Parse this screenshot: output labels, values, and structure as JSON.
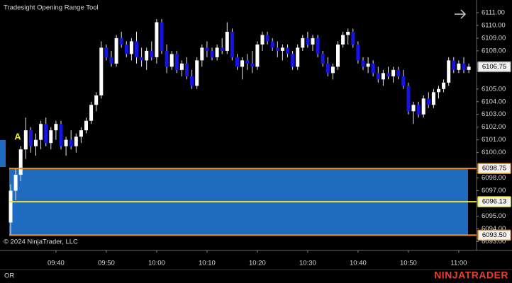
{
  "chart_data": {
    "type": "candlestick",
    "title": "Tradesight Opening Range Tool",
    "copyright": "© 2024 NinjaTrader, LLC",
    "marker_text": "A",
    "footer_label": "OR",
    "logo": "NINJATRADER",
    "up_color": "#ffffff",
    "down_color": "#1414e6",
    "categories": [
      null,
      null,
      null,
      null,
      null,
      null,
      null,
      null,
      null,
      "09:40",
      null,
      null,
      null,
      null,
      null,
      null,
      null,
      null,
      null,
      "09:50",
      null,
      null,
      null,
      null,
      null,
      null,
      null,
      null,
      null,
      "10:00",
      null,
      null,
      null,
      null,
      null,
      null,
      null,
      null,
      null,
      "10:10",
      null,
      null,
      null,
      null,
      null,
      null,
      null,
      null,
      null,
      "10:20",
      null,
      null,
      null,
      null,
      null,
      null,
      null,
      null,
      null,
      "10:30",
      null,
      null,
      null,
      null,
      null,
      null,
      null,
      null,
      null,
      "10:40",
      null,
      null,
      null,
      null,
      null,
      null,
      null,
      null,
      null,
      "10:50",
      null,
      null,
      null,
      null,
      null,
      null,
      null,
      null,
      null,
      "11:00",
      null,
      null
    ],
    "open": [
      6094.5,
      6097,
      6098.25,
      6100.25,
      6101.75,
      6100.5,
      6101,
      6102.25,
      6100.75,
      6101.75,
      6102.25,
      6100.5,
      6101,
      6100.5,
      6101.25,
      6101.75,
      6102.5,
      6103.75,
      6104.5,
      6108.25,
      6107.5,
      6107,
      6109,
      6108.5,
      6107.75,
      6108.75,
      6107.5,
      6107.25,
      6108,
      6107.5,
      6110.25,
      6108,
      6106.75,
      6107.75,
      6106.5,
      6107,
      6106,
      6105.25,
      6107.25,
      6108.25,
      6108,
      6107.5,
      6108.25,
      6108,
      6109.5,
      6107.5,
      6106.75,
      6107.25,
      6107,
      6106.75,
      6108.5,
      6109.25,
      6108.75,
      6108.25,
      6108,
      6108.25,
      6107.75,
      6106.75,
      6108.25,
      6109,
      6108.5,
      6109,
      6107.75,
      6107,
      6106.25,
      6106.75,
      6108.5,
      6109.25,
      6109.5,
      6108.5,
      6107.25,
      6106.75,
      6107,
      6106.25,
      6105.75,
      6106.25,
      6106,
      6106.5,
      6106,
      6105.25,
      6103.25,
      6103.75,
      6103,
      6104.25,
      6103.75,
      6104.75,
      6105,
      6105.5,
      6107.25,
      6106.5,
      6107,
      6106.5
    ],
    "high": [
      6097.5,
      6098.75,
      6100.5,
      6102.75,
      6102,
      6101.5,
      6102.5,
      6102.75,
      6102,
      6102.5,
      6102.5,
      6101.25,
      6101.75,
      6101.5,
      6102,
      6102.75,
      6104,
      6104.75,
      6108.75,
      6108.5,
      6108,
      6109.25,
      6109.5,
      6108.75,
      6109,
      6109.5,
      6108.25,
      6108.25,
      6108.75,
      6110.5,
      6110.5,
      6108.5,
      6108,
      6108,
      6107.25,
      6107.5,
      6106.5,
      6107.5,
      6108.5,
      6108.75,
      6108.25,
      6108.5,
      6109,
      6110.25,
      6109.75,
      6107.75,
      6107.5,
      6107.75,
      6108,
      6108.75,
      6109.5,
      6109.5,
      6109,
      6108.75,
      6108.5,
      6108.5,
      6108,
      6108.5,
      6109.25,
      6109.5,
      6109.25,
      6109.25,
      6108,
      6107.5,
      6107,
      6108.75,
      6109.5,
      6109.75,
      6109.75,
      6108.75,
      6107.5,
      6107.5,
      6107.25,
      6106.75,
      6106.5,
      6106.75,
      6106.75,
      6106.75,
      6106.5,
      6105.5,
      6104,
      6104,
      6104.5,
      6104.75,
      6105,
      6105.25,
      6105.75,
      6107.5,
      6107.5,
      6107.25,
      6107.5,
      6107
    ],
    "low": [
      6093.5,
      6096.25,
      6097.75,
      6099.5,
      6100,
      6099.75,
      6100.25,
      6100.5,
      6100.25,
      6101,
      6100.25,
      6099.75,
      6100.25,
      6100,
      6100.75,
      6101.5,
      6102.25,
      6103.25,
      6104.25,
      6107.25,
      6106.75,
      6106.75,
      6108.25,
      6107.5,
      6107.25,
      6107,
      6106.75,
      6106.5,
      6107.25,
      6107,
      6107.75,
      6106.25,
      6106.5,
      6106.25,
      6106,
      6105.75,
      6105,
      6105,
      6106.75,
      6107.5,
      6107.25,
      6107.25,
      6107.75,
      6107.75,
      6107.25,
      6106.5,
      6105.75,
      6106.5,
      6106.25,
      6106.5,
      6108,
      6108.5,
      6108,
      6107.5,
      6107.25,
      6107.5,
      6106.5,
      6106.5,
      6108,
      6108.25,
      6108,
      6107.5,
      6106.75,
      6106,
      6105.75,
      6106.5,
      6108.25,
      6108.5,
      6108.25,
      6107,
      6106.5,
      6106.25,
      6106,
      6105.5,
      6105.25,
      6105.75,
      6105.5,
      6105.75,
      6105,
      6103,
      6102.25,
      6102.75,
      6102.75,
      6103.5,
      6103.5,
      6104.25,
      6104.75,
      6105.25,
      6106.25,
      6106.25,
      6106.25,
      6106.25
    ],
    "close": [
      6097,
      6098.25,
      6100.25,
      6101.75,
      6100.5,
      6101,
      6102.25,
      6100.75,
      6101.75,
      6102.25,
      6100.5,
      6101,
      6100.5,
      6101.25,
      6101.75,
      6102.5,
      6103.75,
      6104.5,
      6108.25,
      6107.5,
      6107,
      6109,
      6108.5,
      6107.75,
      6108.75,
      6107.5,
      6107.25,
      6108,
      6107.5,
      6110.25,
      6108,
      6106.75,
      6107.75,
      6106.5,
      6107,
      6106,
      6105.25,
      6107.25,
      6108.25,
      6108,
      6107.5,
      6108.25,
      6108,
      6109.5,
      6107.5,
      6106.75,
      6107.25,
      6107,
      6106.75,
      6108.5,
      6109.25,
      6108.75,
      6108.25,
      6108,
      6108.25,
      6107.75,
      6106.75,
      6108.25,
      6109,
      6108.5,
      6109,
      6107.75,
      6107,
      6106.25,
      6106.75,
      6108.5,
      6109.25,
      6109.5,
      6108.5,
      6107.25,
      6106.75,
      6107,
      6106.25,
      6105.75,
      6106.25,
      6106,
      6106.5,
      6106,
      6105.25,
      6103.25,
      6103.75,
      6103,
      6104.25,
      6103.75,
      6104.75,
      6105,
      6105.5,
      6107.25,
      6106.5,
      6107,
      6106.5,
      6106.75
    ],
    "opening_range": {
      "high": {
        "value": 6098.75,
        "label": "6098.75"
      },
      "mid": {
        "value": 6096.13,
        "label": "6096.13"
      },
      "low": {
        "value": 6093.5,
        "label": "6093.50"
      },
      "fill": "#1e6bbf",
      "border_color": "#f0901e",
      "mid_color": "#f0e830"
    },
    "last_price": {
      "value": 6106.75,
      "label": "6106.75"
    },
    "ylim": [
      6092.3,
      6112
    ],
    "yticks": [
      {
        "value": 6093,
        "label": "6093.00"
      },
      {
        "value": 6094,
        "label": "6094.00"
      },
      {
        "value": 6095,
        "label": "6095.00"
      },
      {
        "value": 6097,
        "label": "6097.00"
      },
      {
        "value": 6098,
        "label": "6098.00"
      },
      {
        "value": 6100,
        "label": "6100.00"
      },
      {
        "value": 6101,
        "label": "6101.00"
      },
      {
        "value": 6102,
        "label": "6102.00"
      },
      {
        "value": 6103,
        "label": "6103.00"
      },
      {
        "value": 6104,
        "label": "6104.00"
      },
      {
        "value": 6105,
        "label": "6105.00"
      },
      {
        "value": 6108,
        "label": "6108.00"
      },
      {
        "value": 6109,
        "label": "6109.00"
      },
      {
        "value": 6110,
        "label": "6110.00"
      },
      {
        "value": 6111,
        "label": "6111.00"
      }
    ]
  }
}
